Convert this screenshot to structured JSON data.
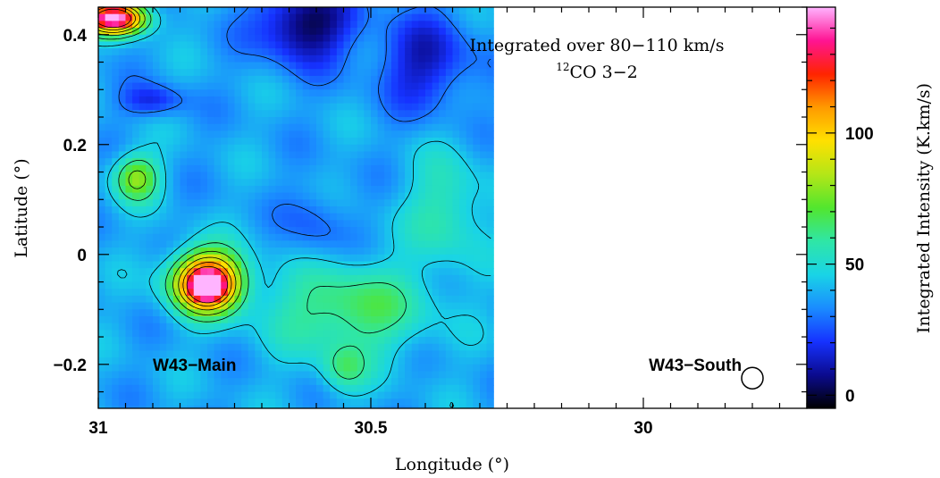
{
  "chart_data": {
    "type": "heatmap",
    "title": "",
    "annotation_line1": "Integrated over 80−110 km/s",
    "annotation_line2_sup": "12",
    "annotation_line2": "CO 3−2",
    "xlabel": "Longitude (°)",
    "ylabel": "Latitude (°)",
    "colorbar_label": "Integrated Intensity (K.km/s)",
    "xlim": [
      31.0,
      29.7
    ],
    "ylim": [
      -0.28,
      0.45
    ],
    "data_extent_lon": [
      31.0,
      30.28
    ],
    "x_ticks": [
      {
        "value": 31,
        "label": "31"
      },
      {
        "value": 30.5,
        "label": "30.5"
      },
      {
        "value": 30,
        "label": "30"
      }
    ],
    "y_ticks": [
      {
        "value": 0.4,
        "label": "0.4"
      },
      {
        "value": 0.2,
        "label": "0.2"
      },
      {
        "value": 0,
        "label": "0"
      },
      {
        "value": -0.2,
        "label": "−0.2"
      }
    ],
    "colorbar_range": [
      -5,
      148
    ],
    "colorbar_ticks": [
      {
        "value": 0,
        "label": "0"
      },
      {
        "value": 50,
        "label": "50"
      },
      {
        "value": 100,
        "label": "100"
      }
    ],
    "colormap": [
      "#000000",
      "#0b0b8f",
      "#1632ff",
      "#1a8cff",
      "#19d4e6",
      "#2fe6a6",
      "#52e62e",
      "#b4e617",
      "#ffe000",
      "#ff9a00",
      "#ff2400",
      "#ff1493",
      "#ffb4ff"
    ],
    "contour_levels": [
      30,
      45,
      60,
      75,
      90,
      105,
      120
    ],
    "regions": [
      {
        "label": "W43−Main",
        "lon": 30.9,
        "lat": -0.2
      },
      {
        "label": "W43−South",
        "lon": 29.99,
        "lat": -0.2
      }
    ],
    "beam": {
      "lon": 29.8,
      "lat": -0.225
    },
    "components": [
      {
        "lon": 30.8,
        "lat": -0.05,
        "sigma_lon": 0.045,
        "sigma_lat": 0.038,
        "amp": 100
      },
      {
        "lon": 30.8,
        "lat": -0.06,
        "sigma_lon": 0.022,
        "sigma_lat": 0.018,
        "amp": 45
      },
      {
        "lon": 30.93,
        "lat": 0.14,
        "sigma_lon": 0.03,
        "sigma_lat": 0.03,
        "amp": 40
      },
      {
        "lon": 30.54,
        "lat": -0.1,
        "sigma_lon": 0.1,
        "sigma_lat": 0.06,
        "amp": 30
      },
      {
        "lon": 30.36,
        "lat": 0.08,
        "sigma_lon": 0.05,
        "sigma_lat": 0.07,
        "amp": 20
      },
      {
        "lon": 30.55,
        "lat": -0.21,
        "sigma_lon": 0.03,
        "sigma_lat": 0.03,
        "amp": 20
      },
      {
        "lon": 30.97,
        "lat": 0.43,
        "sigma_lon": 0.04,
        "sigma_lat": 0.02,
        "amp": 110
      },
      {
        "lon": 30.62,
        "lat": 0.42,
        "sigma_lon": 0.06,
        "sigma_lat": 0.05,
        "amp": -38
      },
      {
        "lon": 30.4,
        "lat": 0.35,
        "sigma_lon": 0.06,
        "sigma_lat": 0.06,
        "amp": -25
      },
      {
        "lon": 30.6,
        "lat": 0.05,
        "sigma_lon": 0.04,
        "sigma_lat": 0.05,
        "amp": -12
      },
      {
        "lon": 30.9,
        "lat": 0.28,
        "sigma_lon": 0.04,
        "sigma_lat": 0.02,
        "amp": -20
      }
    ],
    "baseline": 38
  }
}
